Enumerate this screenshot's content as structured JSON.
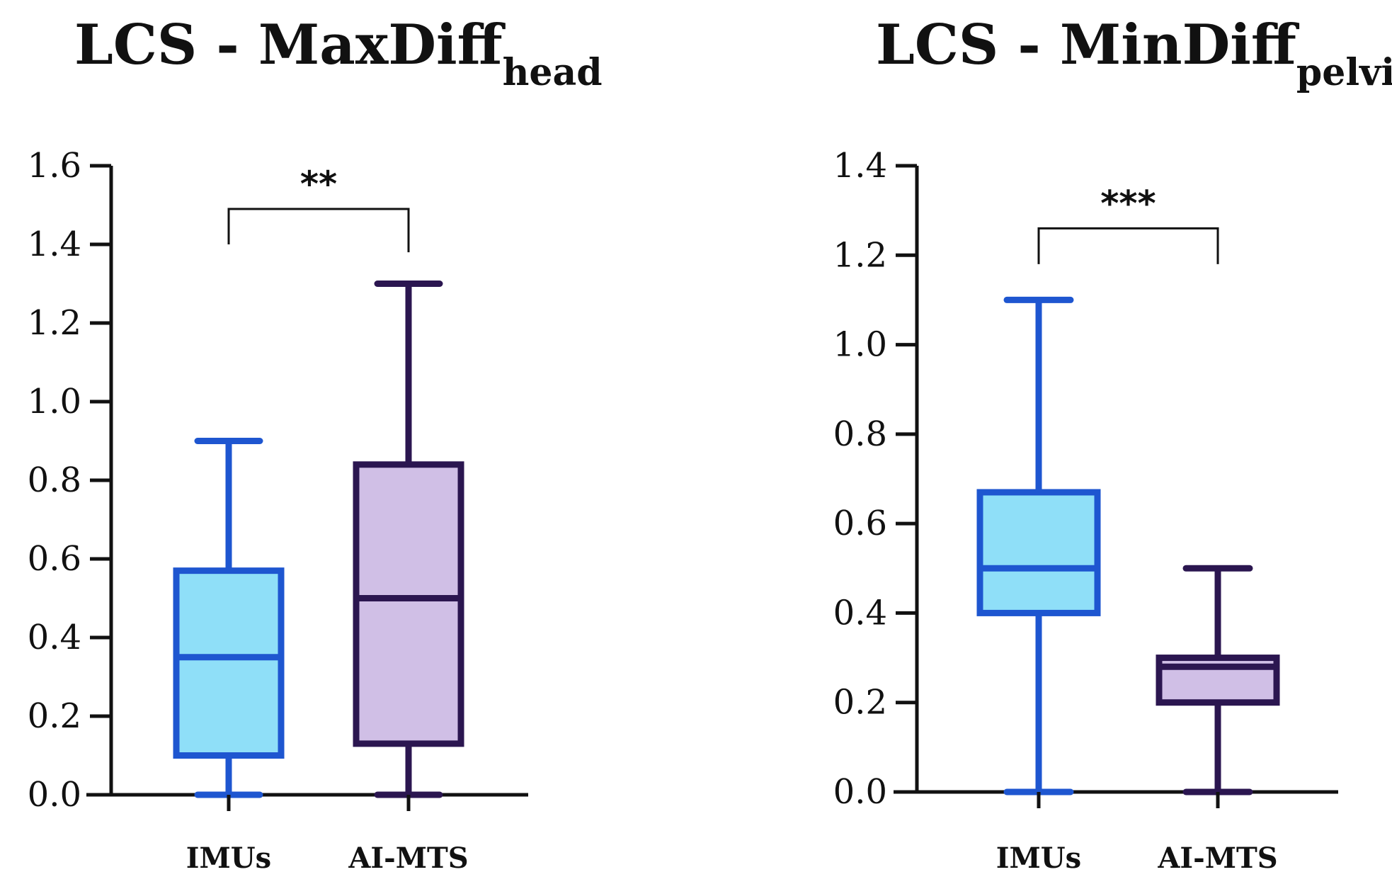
{
  "chart_data": [
    {
      "type": "box",
      "title": "LCS - MaxDiff",
      "title_subscript": "head",
      "ylim": [
        0.0,
        1.6
      ],
      "yticks": [
        "0.0",
        "0.2",
        "0.4",
        "0.6",
        "0.8",
        "1.0",
        "1.2",
        "1.4",
        "1.6"
      ],
      "categories": [
        "IMUs",
        "AI-MTS"
      ],
      "boxes": [
        {
          "name": "IMUs",
          "min": 0.0,
          "q1": 0.1,
          "median": 0.35,
          "q3": 0.57,
          "max": 0.9,
          "fill": "#8fdff8",
          "stroke": "#1e56d0"
        },
        {
          "name": "AI-MTS",
          "min": 0.0,
          "q1": 0.13,
          "median": 0.5,
          "q3": 0.84,
          "max": 1.3,
          "fill": "#d0bfe6",
          "stroke": "#2b1650"
        }
      ],
      "significance": {
        "label": "**",
        "bracket_y": 1.49,
        "left_drop_y": 1.4,
        "right_drop_y": 1.38
      }
    },
    {
      "type": "box",
      "title": "LCS - MinDiff",
      "title_subscript": "pelvis",
      "ylim": [
        0.0,
        1.4
      ],
      "yticks": [
        "0.0",
        "0.2",
        "0.4",
        "0.6",
        "0.8",
        "1.0",
        "1.2",
        "1.4"
      ],
      "categories": [
        "IMUs",
        "AI-MTS"
      ],
      "boxes": [
        {
          "name": "IMUs",
          "min": 0.0,
          "q1": 0.4,
          "median": 0.5,
          "q3": 0.67,
          "max": 1.1,
          "fill": "#8fdff8",
          "stroke": "#1e56d0"
        },
        {
          "name": "AI-MTS",
          "min": 0.0,
          "q1": 0.2,
          "median": 0.28,
          "q3": 0.3,
          "max": 0.5,
          "fill": "#d0bfe6",
          "stroke": "#2b1650"
        }
      ],
      "significance": {
        "label": "***",
        "bracket_y": 1.26,
        "left_drop_y": 1.18,
        "right_drop_y": 1.18
      }
    }
  ]
}
